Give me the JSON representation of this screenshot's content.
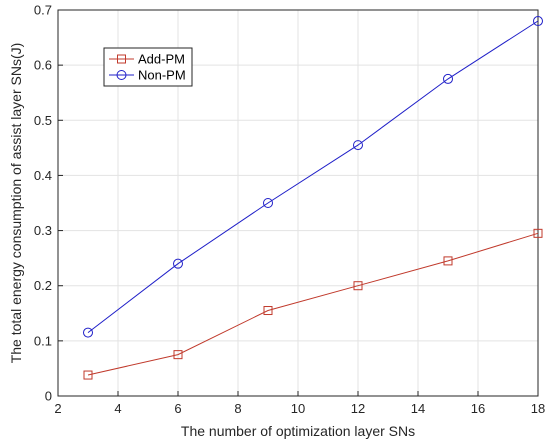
{
  "chart_data": {
    "type": "line",
    "title": "",
    "xlabel": "The number of optimization layer SNs",
    "ylabel": "The total energy consumption of assist layer SNs(J)",
    "xlim": [
      2,
      18
    ],
    "ylim": [
      0,
      0.7
    ],
    "xticks": [
      2,
      4,
      6,
      8,
      10,
      12,
      14,
      16,
      18
    ],
    "yticks": [
      0,
      0.1,
      0.2,
      0.3,
      0.4,
      0.5,
      0.6,
      0.7
    ],
    "grid": true,
    "legend_position": "top-left",
    "x": [
      3,
      6,
      9,
      12,
      15,
      18
    ],
    "series": [
      {
        "name": "Add-PM",
        "marker": "square",
        "color": "#c0392b",
        "values": [
          0.038,
          0.075,
          0.155,
          0.2,
          0.245,
          0.295
        ]
      },
      {
        "name": "Non-PM",
        "marker": "circle",
        "color": "#1f1fc8",
        "values": [
          0.115,
          0.24,
          0.35,
          0.455,
          0.575,
          0.68
        ]
      }
    ]
  }
}
